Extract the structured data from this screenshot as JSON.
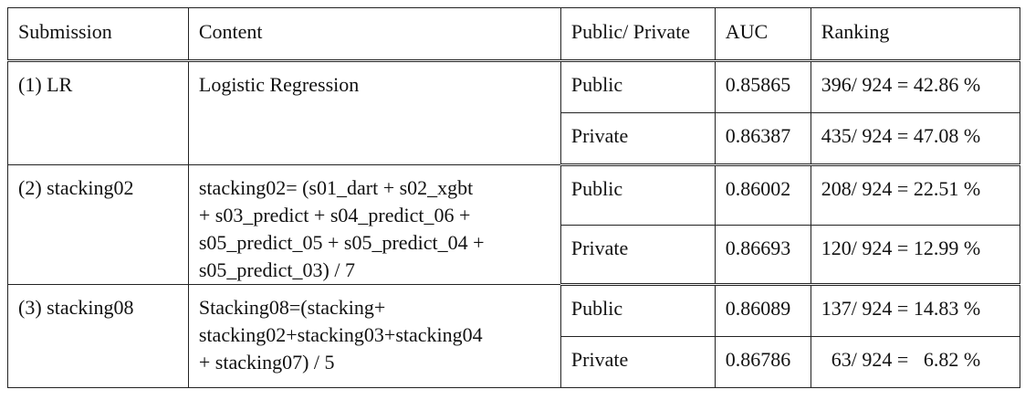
{
  "headers": [
    "Submission",
    "Content",
    "Public/ Private",
    "AUC",
    "Ranking"
  ],
  "groups": [
    {
      "submission": "(1) LR",
      "content_lines": [
        "Logistic Regression"
      ],
      "rows": [
        {
          "split": "Public",
          "auc": "0.85865",
          "ranking": "396/ 924 = 42.86 %"
        },
        {
          "split": "Private",
          "auc": "0.86387",
          "ranking": "435/ 924 = 47.08 %"
        }
      ]
    },
    {
      "submission": "(2) stacking02",
      "content_lines": [
        "stacking02= (s01_dart + s02_xgbt",
        "+ s03_predict + s04_predict_06 +",
        "s05_predict_05 + s05_predict_04 +",
        "s05_predict_03) / 7"
      ],
      "rows": [
        {
          "split": "Public",
          "auc": "0.86002",
          "ranking": "208/ 924 = 22.51 %"
        },
        {
          "split": "Private",
          "auc": "0.86693",
          "ranking": "120/ 924 = 12.99 %"
        }
      ]
    },
    {
      "submission": "(3) stacking08",
      "content_lines": [
        "Stacking08=(stacking+",
        "stacking02+stacking03+stacking04",
        "+ stacking07) / 5"
      ],
      "rows": [
        {
          "split": "Public",
          "auc": "0.86089",
          "ranking": "137/ 924 = 14.83 %"
        },
        {
          "split": "Private",
          "auc": "0.86786",
          "ranking": "  63/ 924 =   6.82 %"
        }
      ]
    }
  ]
}
